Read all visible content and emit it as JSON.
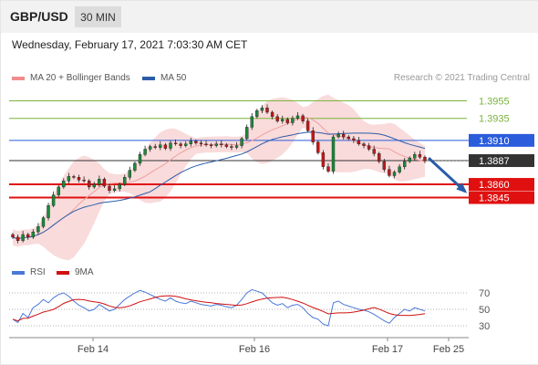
{
  "header": {
    "symbol": "GBP/USD",
    "timeframe": "30 MIN",
    "timestamp": "Wednesday, February 17, 2021 7:03:30 AM CET"
  },
  "legend": {
    "ma20_bb": "MA 20 + Bollinger Bands",
    "ma20_color": "#f08c8c",
    "ma50": "MA 50",
    "ma50_color": "#2a5caa",
    "rsi": "RSI",
    "rsi_color": "#4a78d8",
    "rsi_ma": "9MA",
    "rsi_ma_color": "#d01010"
  },
  "copyright": "Research © 2021 Trading Central",
  "chart_data": {
    "type": "candlestick",
    "price_range": [
      1.3775,
      1.397
    ],
    "x_labels": [
      "Feb 14",
      "Feb 16",
      "Feb 17",
      "Feb 25"
    ],
    "levels": [
      {
        "value": 1.3955,
        "label": "1.3955",
        "color": "#7ab33c",
        "badge": false
      },
      {
        "value": 1.3935,
        "label": "1.3935",
        "color": "#7ab33c",
        "badge": false
      },
      {
        "value": 1.391,
        "label": "1.3910",
        "color": "#2a5cdc",
        "badge": true
      },
      {
        "value": 1.3887,
        "label": "1.3887",
        "color": "#333333",
        "badge": true
      },
      {
        "value": 1.386,
        "label": "1.3860",
        "color": "#e01010",
        "badge": true
      },
      {
        "value": 1.3845,
        "label": "1.3845",
        "color": "#e01010",
        "badge": true
      }
    ],
    "current_price": 1.3887,
    "forecast": {
      "from": 1.389,
      "to": 1.3852,
      "color": "#2a5caa"
    },
    "closes": [
      1.38,
      1.3796,
      1.3803,
      1.38,
      1.3806,
      1.3812,
      1.3822,
      1.3836,
      1.3848,
      1.3857,
      1.3864,
      1.3869,
      1.3868,
      1.3865,
      1.3864,
      1.3857,
      1.386,
      1.3866,
      1.3858,
      1.3853,
      1.3855,
      1.386,
      1.3868,
      1.3876,
      1.3884,
      1.3894,
      1.39,
      1.3903,
      1.3902,
      1.3905,
      1.3901,
      1.3907,
      1.3906,
      1.3904,
      1.3906,
      1.3909,
      1.3907,
      1.3906,
      1.3905,
      1.3904,
      1.3906,
      1.3905,
      1.3903,
      1.3902,
      1.3904,
      1.3912,
      1.3925,
      1.3937,
      1.3944,
      1.3947,
      1.3942,
      1.3937,
      1.3932,
      1.3934,
      1.393,
      1.3935,
      1.3938,
      1.3932,
      1.3921,
      1.3908,
      1.3896,
      1.388,
      1.3875,
      1.3914,
      1.3917,
      1.3914,
      1.3912,
      1.391,
      1.3906,
      1.3904,
      1.39,
      1.3895,
      1.3886,
      1.3877,
      1.387,
      1.3874,
      1.388,
      1.3886,
      1.389,
      1.3894,
      1.3891,
      1.3887
    ],
    "rsi": {
      "levels": [
        70,
        50,
        30
      ],
      "range": [
        20,
        80
      ],
      "values": [
        38,
        34,
        45,
        40,
        52,
        56,
        62,
        58,
        64,
        68,
        70,
        66,
        60,
        55,
        52,
        48,
        50,
        56,
        52,
        48,
        50,
        56,
        62,
        66,
        70,
        73,
        71,
        68,
        65,
        62,
        60,
        64,
        60,
        58,
        57,
        60,
        58,
        56,
        55,
        54,
        56,
        55,
        53,
        52,
        55,
        62,
        70,
        74,
        72,
        70,
        64,
        58,
        55,
        57,
        52,
        55,
        56,
        52,
        45,
        40,
        38,
        32,
        30,
        58,
        60,
        56,
        54,
        52,
        50,
        49,
        47,
        44,
        40,
        36,
        33,
        40,
        45,
        50,
        48,
        52,
        50,
        48
      ]
    }
  }
}
